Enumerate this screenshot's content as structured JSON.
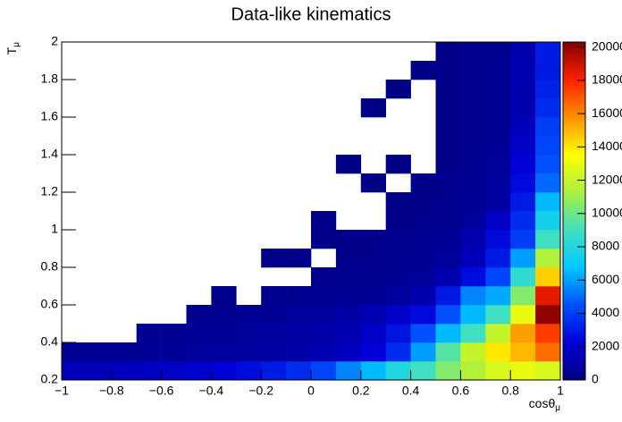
{
  "chart_data": {
    "type": "heatmap",
    "title": "Data-like kinematics",
    "x_label": "cosθ",
    "x_label_subscript": "μ",
    "y_label": "T",
    "y_label_subscript": "μ",
    "xlim": [
      -1,
      1
    ],
    "ylim": [
      0.2,
      2
    ],
    "zlim": [
      0,
      20300
    ],
    "xbins": [
      -1,
      -0.9,
      -0.8,
      -0.7,
      -0.6,
      -0.5,
      -0.4,
      -0.3,
      -0.2,
      -0.1,
      0,
      0.1,
      0.2,
      0.3,
      0.4,
      0.5,
      0.6,
      0.7,
      0.8,
      0.9,
      1
    ],
    "ybins": [
      0.2,
      0.3,
      0.4,
      0.5,
      0.6,
      0.7,
      0.8,
      0.9,
      1.0,
      1.1,
      1.2,
      1.3,
      1.4,
      1.5,
      1.6,
      1.7,
      1.8,
      1.9,
      2.0
    ],
    "xticks": [
      {
        "value": -1,
        "label": "−1"
      },
      {
        "value": -0.8,
        "label": "−0.8"
      },
      {
        "value": -0.6,
        "label": "−0.6"
      },
      {
        "value": -0.4,
        "label": "−0.4"
      },
      {
        "value": -0.2,
        "label": "−0.2"
      },
      0,
      0.2,
      0.4,
      0.6,
      0.8,
      1
    ],
    "yticks": [
      0.2,
      0.4,
      0.6,
      0.8,
      1,
      1.2,
      1.4,
      1.6,
      1.8,
      2
    ],
    "zticks": [
      0,
      2000,
      4000,
      6000,
      8000,
      10000,
      12000,
      14000,
      16000,
      18000,
      20000
    ],
    "colorscale": [
      "#000080",
      "#0000d8",
      "#0050ff",
      "#00c8ff",
      "#40e0c0",
      "#a8f040",
      "#ffff00",
      "#ff9000",
      "#ff2000",
      "#800000"
    ],
    "z": [
      [
        1500,
        1500,
        1600,
        1700,
        1800,
        2000,
        2200,
        2600,
        3000,
        3500,
        4200,
        5500,
        6500,
        8000,
        9000,
        10500,
        11500,
        12500,
        13000,
        12500
      ],
      [
        500,
        500,
        550,
        600,
        650,
        700,
        750,
        800,
        900,
        1000,
        1300,
        1700,
        2200,
        3500,
        6000,
        9500,
        12000,
        14000,
        15000,
        16500
      ],
      [
        0,
        0,
        0,
        500,
        550,
        600,
        650,
        700,
        800,
        900,
        1000,
        1300,
        1800,
        2800,
        4500,
        6500,
        9000,
        12000,
        15500,
        17500
      ],
      [
        0,
        0,
        0,
        0,
        0,
        400,
        450,
        500,
        600,
        700,
        800,
        1000,
        1300,
        1800,
        2500,
        4500,
        6500,
        9000,
        13000,
        20000
      ],
      [
        0,
        0,
        0,
        0,
        0,
        0,
        300,
        0,
        350,
        400,
        450,
        500,
        600,
        800,
        1200,
        3000,
        5500,
        6200,
        10500,
        18500
      ],
      [
        0,
        0,
        0,
        0,
        0,
        0,
        0,
        0,
        0,
        0,
        300,
        350,
        400,
        500,
        700,
        1200,
        2500,
        4200,
        8500,
        14500
      ],
      [
        0,
        0,
        0,
        0,
        0,
        0,
        0,
        0,
        200,
        200,
        0,
        250,
        300,
        350,
        450,
        700,
        1500,
        3000,
        6000,
        11500
      ],
      [
        0,
        0,
        0,
        0,
        0,
        0,
        0,
        0,
        0,
        0,
        200,
        250,
        300,
        350,
        450,
        600,
        1200,
        2500,
        4000,
        9000
      ],
      [
        0,
        0,
        0,
        0,
        0,
        0,
        0,
        0,
        0,
        0,
        200,
        0,
        0,
        250,
        300,
        400,
        700,
        1800,
        3500,
        7500
      ],
      [
        0,
        0,
        0,
        0,
        0,
        0,
        0,
        0,
        0,
        0,
        0,
        0,
        0,
        200,
        250,
        350,
        500,
        900,
        3000,
        6500
      ],
      [
        0,
        0,
        0,
        0,
        0,
        0,
        0,
        0,
        0,
        0,
        0,
        0,
        150,
        0,
        200,
        300,
        500,
        800,
        2500,
        5000
      ],
      [
        0,
        0,
        0,
        0,
        0,
        0,
        0,
        0,
        0,
        0,
        0,
        150,
        0,
        150,
        0,
        250,
        400,
        700,
        2200,
        4500
      ],
      [
        0,
        0,
        0,
        0,
        0,
        0,
        0,
        0,
        0,
        0,
        0,
        0,
        0,
        0,
        0,
        250,
        350,
        600,
        1800,
        4200
      ],
      [
        0,
        0,
        0,
        0,
        0,
        0,
        0,
        0,
        0,
        0,
        0,
        0,
        0,
        0,
        0,
        200,
        300,
        500,
        1500,
        4000
      ],
      [
        0,
        0,
        0,
        0,
        0,
        0,
        0,
        0,
        0,
        0,
        0,
        0,
        150,
        0,
        0,
        200,
        300,
        500,
        1200,
        3500
      ],
      [
        0,
        0,
        0,
        0,
        0,
        0,
        0,
        0,
        0,
        0,
        0,
        0,
        0,
        150,
        0,
        200,
        300,
        500,
        1200,
        3200
      ],
      [
        0,
        0,
        0,
        0,
        0,
        0,
        0,
        0,
        0,
        0,
        0,
        0,
        0,
        0,
        150,
        250,
        350,
        500,
        1300,
        3000
      ],
      [
        0,
        0,
        0,
        0,
        0,
        0,
        0,
        0,
        0,
        0,
        0,
        0,
        0,
        0,
        0,
        200,
        300,
        400,
        1200,
        3000
      ]
    ]
  }
}
